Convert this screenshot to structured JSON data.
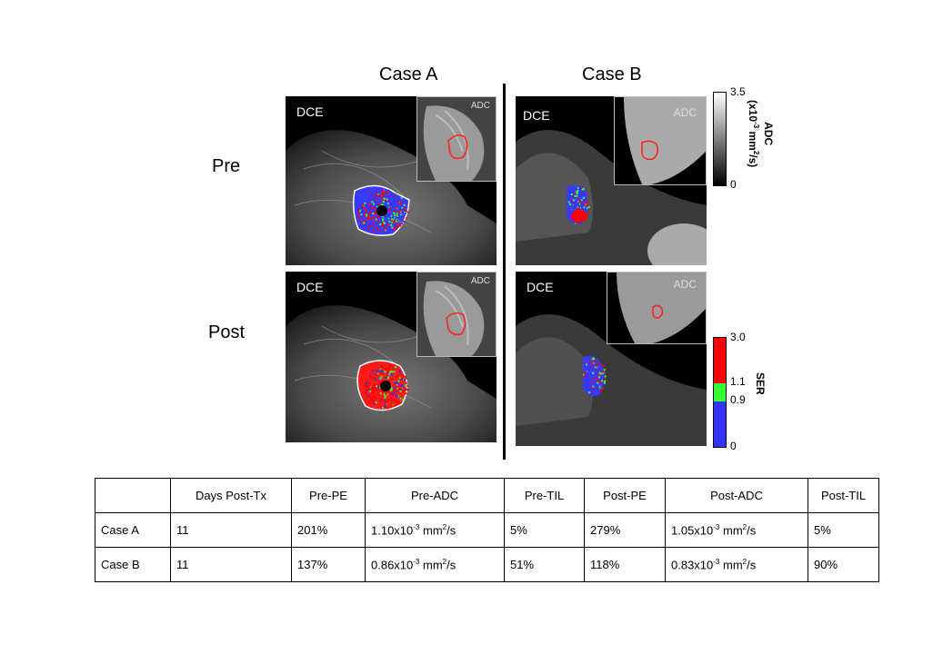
{
  "figure": {
    "case_a": "Case A",
    "case_b": "Case B",
    "row_pre": "Pre",
    "row_post": "Post",
    "dce_label": "DCE",
    "adc_label": "ADC"
  },
  "colorbars": {
    "adc": {
      "title": "ADC",
      "unit_prefix": "(x10",
      "unit_exp": "-3",
      "unit_mid": " mm",
      "unit_exp2": "2",
      "unit_suffix": "/s)",
      "max": "3.5",
      "min": "0"
    },
    "ser": {
      "title": "SER",
      "max": "3.0",
      "mid_high": "1.1",
      "mid_low": "0.9",
      "min": "0",
      "colors": {
        "red": "#ff0000",
        "green": "#33ff33",
        "blue": "#3333ff"
      }
    }
  },
  "table": {
    "headers": [
      "",
      "Days Post-Tx",
      "Pre-PE",
      "Pre-ADC",
      "Pre-TIL",
      "Post-PE",
      "Post-ADC",
      "Post-TIL"
    ],
    "rows": [
      {
        "name": "Case A",
        "days": "11",
        "pre_pe": "201%",
        "pre_adc_val": "1.10x10",
        "pre_adc_tail": " mm",
        "pre_til": "5%",
        "post_pe": "279%",
        "post_adc_val": "1.05x10",
        "post_adc_tail": " mm",
        "post_til": "5%"
      },
      {
        "name": "Case B",
        "days": "11",
        "pre_pe": "137%",
        "pre_adc_val": "0.86x10",
        "pre_adc_tail": " mm",
        "pre_til": "51%",
        "post_pe": "118%",
        "post_adc_val": "0.83x10",
        "post_adc_tail": " mm",
        "post_til": "90%"
      }
    ],
    "exp": "-3",
    "sq": "2",
    "per_s": "/s"
  }
}
